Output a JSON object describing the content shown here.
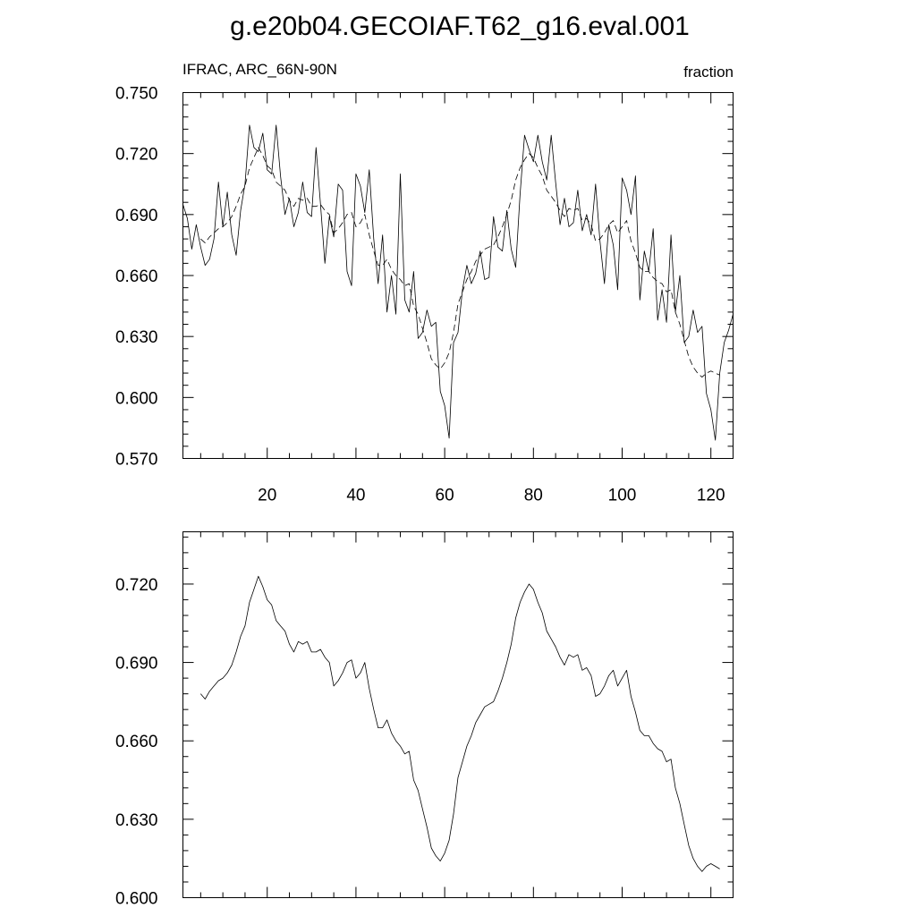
{
  "title": "g.e20b04.GECOIAF.T62_g16.eval.001",
  "chart_data": [
    {
      "type": "line",
      "variable_label": "IFRAC, ARC_66N-90N",
      "units_label": "fraction",
      "xlim": [
        1,
        125
      ],
      "ylim": [
        0.57,
        0.75
      ],
      "x_ticks": [
        20,
        40,
        60,
        80,
        100,
        120
      ],
      "y_ticks": [
        0.57,
        0.6,
        0.63,
        0.66,
        0.69,
        0.72,
        0.75
      ],
      "x_tick_labels": [
        "20",
        "40",
        "60",
        "80",
        "100",
        "120"
      ],
      "y_tick_labels": [
        "0.570",
        "0.600",
        "0.630",
        "0.660",
        "0.690",
        "0.720",
        "0.750"
      ],
      "series": [
        {
          "style": "solid",
          "x": [
            1,
            2,
            3,
            4,
            5,
            6,
            7,
            8,
            9,
            10,
            11,
            12,
            13,
            14,
            15,
            16,
            17,
            18,
            19,
            20,
            21,
            22,
            23,
            24,
            25,
            26,
            27,
            28,
            29,
            30,
            31,
            32,
            33,
            34,
            35,
            36,
            37,
            38,
            39,
            40,
            41,
            42,
            43,
            44,
            45,
            46,
            47,
            48,
            49,
            50,
            51,
            52,
            53,
            54,
            55,
            56,
            57,
            58,
            59,
            60,
            61,
            62,
            63,
            64,
            65,
            66,
            67,
            68,
            69,
            70,
            71,
            72,
            73,
            74,
            75,
            76,
            77,
            78,
            79,
            80,
            81,
            82,
            83,
            84,
            85,
            86,
            87,
            88,
            89,
            90,
            91,
            92,
            93,
            94,
            95,
            96,
            97,
            98,
            99,
            100,
            101,
            102,
            103,
            104,
            105,
            106,
            107,
            108,
            109,
            110,
            111,
            112,
            113,
            114,
            115,
            116,
            117,
            118,
            119,
            120,
            121,
            122,
            123,
            124,
            125
          ],
          "y": [
            0.695,
            0.688,
            0.673,
            0.685,
            0.674,
            0.665,
            0.668,
            0.678,
            0.706,
            0.684,
            0.701,
            0.68,
            0.67,
            0.692,
            0.705,
            0.734,
            0.723,
            0.721,
            0.73,
            0.712,
            0.71,
            0.734,
            0.709,
            0.69,
            0.698,
            0.684,
            0.691,
            0.706,
            0.691,
            0.689,
            0.723,
            0.695,
            0.666,
            0.689,
            0.679,
            0.705,
            0.702,
            0.662,
            0.655,
            0.71,
            0.704,
            0.691,
            0.712,
            0.678,
            0.656,
            0.68,
            0.642,
            0.66,
            0.641,
            0.71,
            0.648,
            0.642,
            0.662,
            0.629,
            0.632,
            0.643,
            0.635,
            0.637,
            0.603,
            0.596,
            0.58,
            0.627,
            0.632,
            0.653,
            0.665,
            0.656,
            0.661,
            0.672,
            0.658,
            0.659,
            0.689,
            0.674,
            0.672,
            0.692,
            0.673,
            0.664,
            0.7,
            0.729,
            0.722,
            0.716,
            0.729,
            0.716,
            0.707,
            0.729,
            0.706,
            0.685,
            0.698,
            0.684,
            0.686,
            0.702,
            0.682,
            0.69,
            0.68,
            0.705,
            0.677,
            0.656,
            0.685,
            0.675,
            0.653,
            0.708,
            0.702,
            0.69,
            0.709,
            0.648,
            0.672,
            0.662,
            0.683,
            0.638,
            0.653,
            0.637,
            0.68,
            0.642,
            0.66,
            0.627,
            0.63,
            0.643,
            0.632,
            0.635,
            0.602,
            0.594,
            0.579,
            0.612,
            0.627,
            0.633,
            0.641
          ]
        },
        {
          "style": "dashed",
          "x": [
            5,
            6,
            7,
            8,
            9,
            10,
            11,
            12,
            13,
            14,
            15,
            16,
            17,
            18,
            19,
            20,
            21,
            22,
            23,
            24,
            25,
            26,
            27,
            28,
            29,
            30,
            31,
            32,
            33,
            34,
            35,
            36,
            37,
            38,
            39,
            40,
            41,
            42,
            43,
            44,
            45,
            46,
            47,
            48,
            49,
            50,
            51,
            52,
            53,
            54,
            55,
            56,
            57,
            58,
            59,
            60,
            61,
            62,
            63,
            64,
            65,
            66,
            67,
            68,
            69,
            70,
            71,
            72,
            73,
            74,
            75,
            76,
            77,
            78,
            79,
            80,
            81,
            82,
            83,
            84,
            85,
            86,
            87,
            88,
            89,
            90,
            91,
            92,
            93,
            94,
            95,
            96,
            97,
            98,
            99,
            100,
            101,
            102,
            103,
            104,
            105,
            106,
            107,
            108,
            109,
            110,
            111,
            112,
            113,
            114,
            115,
            116,
            117,
            118,
            119,
            120,
            121,
            122
          ],
          "y": [
            0.678,
            0.676,
            0.679,
            0.681,
            0.683,
            0.684,
            0.686,
            0.689,
            0.694,
            0.7,
            0.704,
            0.713,
            0.718,
            0.723,
            0.719,
            0.714,
            0.712,
            0.706,
            0.704,
            0.702,
            0.697,
            0.694,
            0.698,
            0.697,
            0.698,
            0.694,
            0.694,
            0.695,
            0.692,
            0.69,
            0.681,
            0.683,
            0.686,
            0.69,
            0.691,
            0.684,
            0.686,
            0.69,
            0.68,
            0.672,
            0.665,
            0.665,
            0.668,
            0.663,
            0.66,
            0.658,
            0.655,
            0.656,
            0.645,
            0.641,
            0.634,
            0.627,
            0.619,
            0.616,
            0.614,
            0.617,
            0.622,
            0.632,
            0.646,
            0.652,
            0.658,
            0.662,
            0.667,
            0.67,
            0.673,
            0.674,
            0.675,
            0.679,
            0.684,
            0.69,
            0.697,
            0.707,
            0.713,
            0.717,
            0.72,
            0.718,
            0.713,
            0.709,
            0.702,
            0.699,
            0.696,
            0.692,
            0.689,
            0.693,
            0.692,
            0.693,
            0.687,
            0.688,
            0.685,
            0.677,
            0.678,
            0.681,
            0.685,
            0.687,
            0.681,
            0.684,
            0.687,
            0.677,
            0.671,
            0.664,
            0.662,
            0.662,
            0.659,
            0.657,
            0.656,
            0.652,
            0.653,
            0.642,
            0.636,
            0.628,
            0.62,
            0.615,
            0.612,
            0.61,
            0.612,
            0.613,
            0.612,
            0.611
          ]
        }
      ]
    },
    {
      "type": "line",
      "xlim": [
        1,
        125
      ],
      "ylim": [
        0.6,
        0.74
      ],
      "x_ticks": [
        20,
        40,
        60,
        80,
        100,
        120
      ],
      "y_ticks": [
        0.6,
        0.63,
        0.66,
        0.69,
        0.72
      ],
      "y_tick_labels": [
        "0.600",
        "0.630",
        "0.660",
        "0.690",
        "0.720"
      ],
      "series": [
        {
          "style": "solid",
          "x": [
            5,
            6,
            7,
            8,
            9,
            10,
            11,
            12,
            13,
            14,
            15,
            16,
            17,
            18,
            19,
            20,
            21,
            22,
            23,
            24,
            25,
            26,
            27,
            28,
            29,
            30,
            31,
            32,
            33,
            34,
            35,
            36,
            37,
            38,
            39,
            40,
            41,
            42,
            43,
            44,
            45,
            46,
            47,
            48,
            49,
            50,
            51,
            52,
            53,
            54,
            55,
            56,
            57,
            58,
            59,
            60,
            61,
            62,
            63,
            64,
            65,
            66,
            67,
            68,
            69,
            70,
            71,
            72,
            73,
            74,
            75,
            76,
            77,
            78,
            79,
            80,
            81,
            82,
            83,
            84,
            85,
            86,
            87,
            88,
            89,
            90,
            91,
            92,
            93,
            94,
            95,
            96,
            97,
            98,
            99,
            100,
            101,
            102,
            103,
            104,
            105,
            106,
            107,
            108,
            109,
            110,
            111,
            112,
            113,
            114,
            115,
            116,
            117,
            118,
            119,
            120,
            121,
            122
          ],
          "y": [
            0.678,
            0.676,
            0.679,
            0.681,
            0.683,
            0.684,
            0.686,
            0.689,
            0.694,
            0.7,
            0.704,
            0.713,
            0.718,
            0.723,
            0.719,
            0.714,
            0.712,
            0.706,
            0.704,
            0.702,
            0.697,
            0.694,
            0.698,
            0.697,
            0.698,
            0.694,
            0.694,
            0.695,
            0.692,
            0.69,
            0.681,
            0.683,
            0.686,
            0.69,
            0.691,
            0.684,
            0.686,
            0.69,
            0.68,
            0.672,
            0.665,
            0.665,
            0.668,
            0.663,
            0.66,
            0.658,
            0.655,
            0.656,
            0.645,
            0.641,
            0.634,
            0.627,
            0.619,
            0.616,
            0.614,
            0.617,
            0.622,
            0.632,
            0.646,
            0.652,
            0.658,
            0.662,
            0.667,
            0.67,
            0.673,
            0.674,
            0.675,
            0.679,
            0.684,
            0.69,
            0.697,
            0.707,
            0.713,
            0.717,
            0.72,
            0.718,
            0.713,
            0.709,
            0.702,
            0.699,
            0.696,
            0.692,
            0.689,
            0.693,
            0.692,
            0.693,
            0.687,
            0.688,
            0.685,
            0.677,
            0.678,
            0.681,
            0.685,
            0.687,
            0.681,
            0.684,
            0.687,
            0.677,
            0.671,
            0.664,
            0.662,
            0.662,
            0.659,
            0.657,
            0.656,
            0.652,
            0.653,
            0.642,
            0.636,
            0.628,
            0.62,
            0.615,
            0.612,
            0.61,
            0.612,
            0.613,
            0.612,
            0.611
          ]
        }
      ]
    }
  ]
}
